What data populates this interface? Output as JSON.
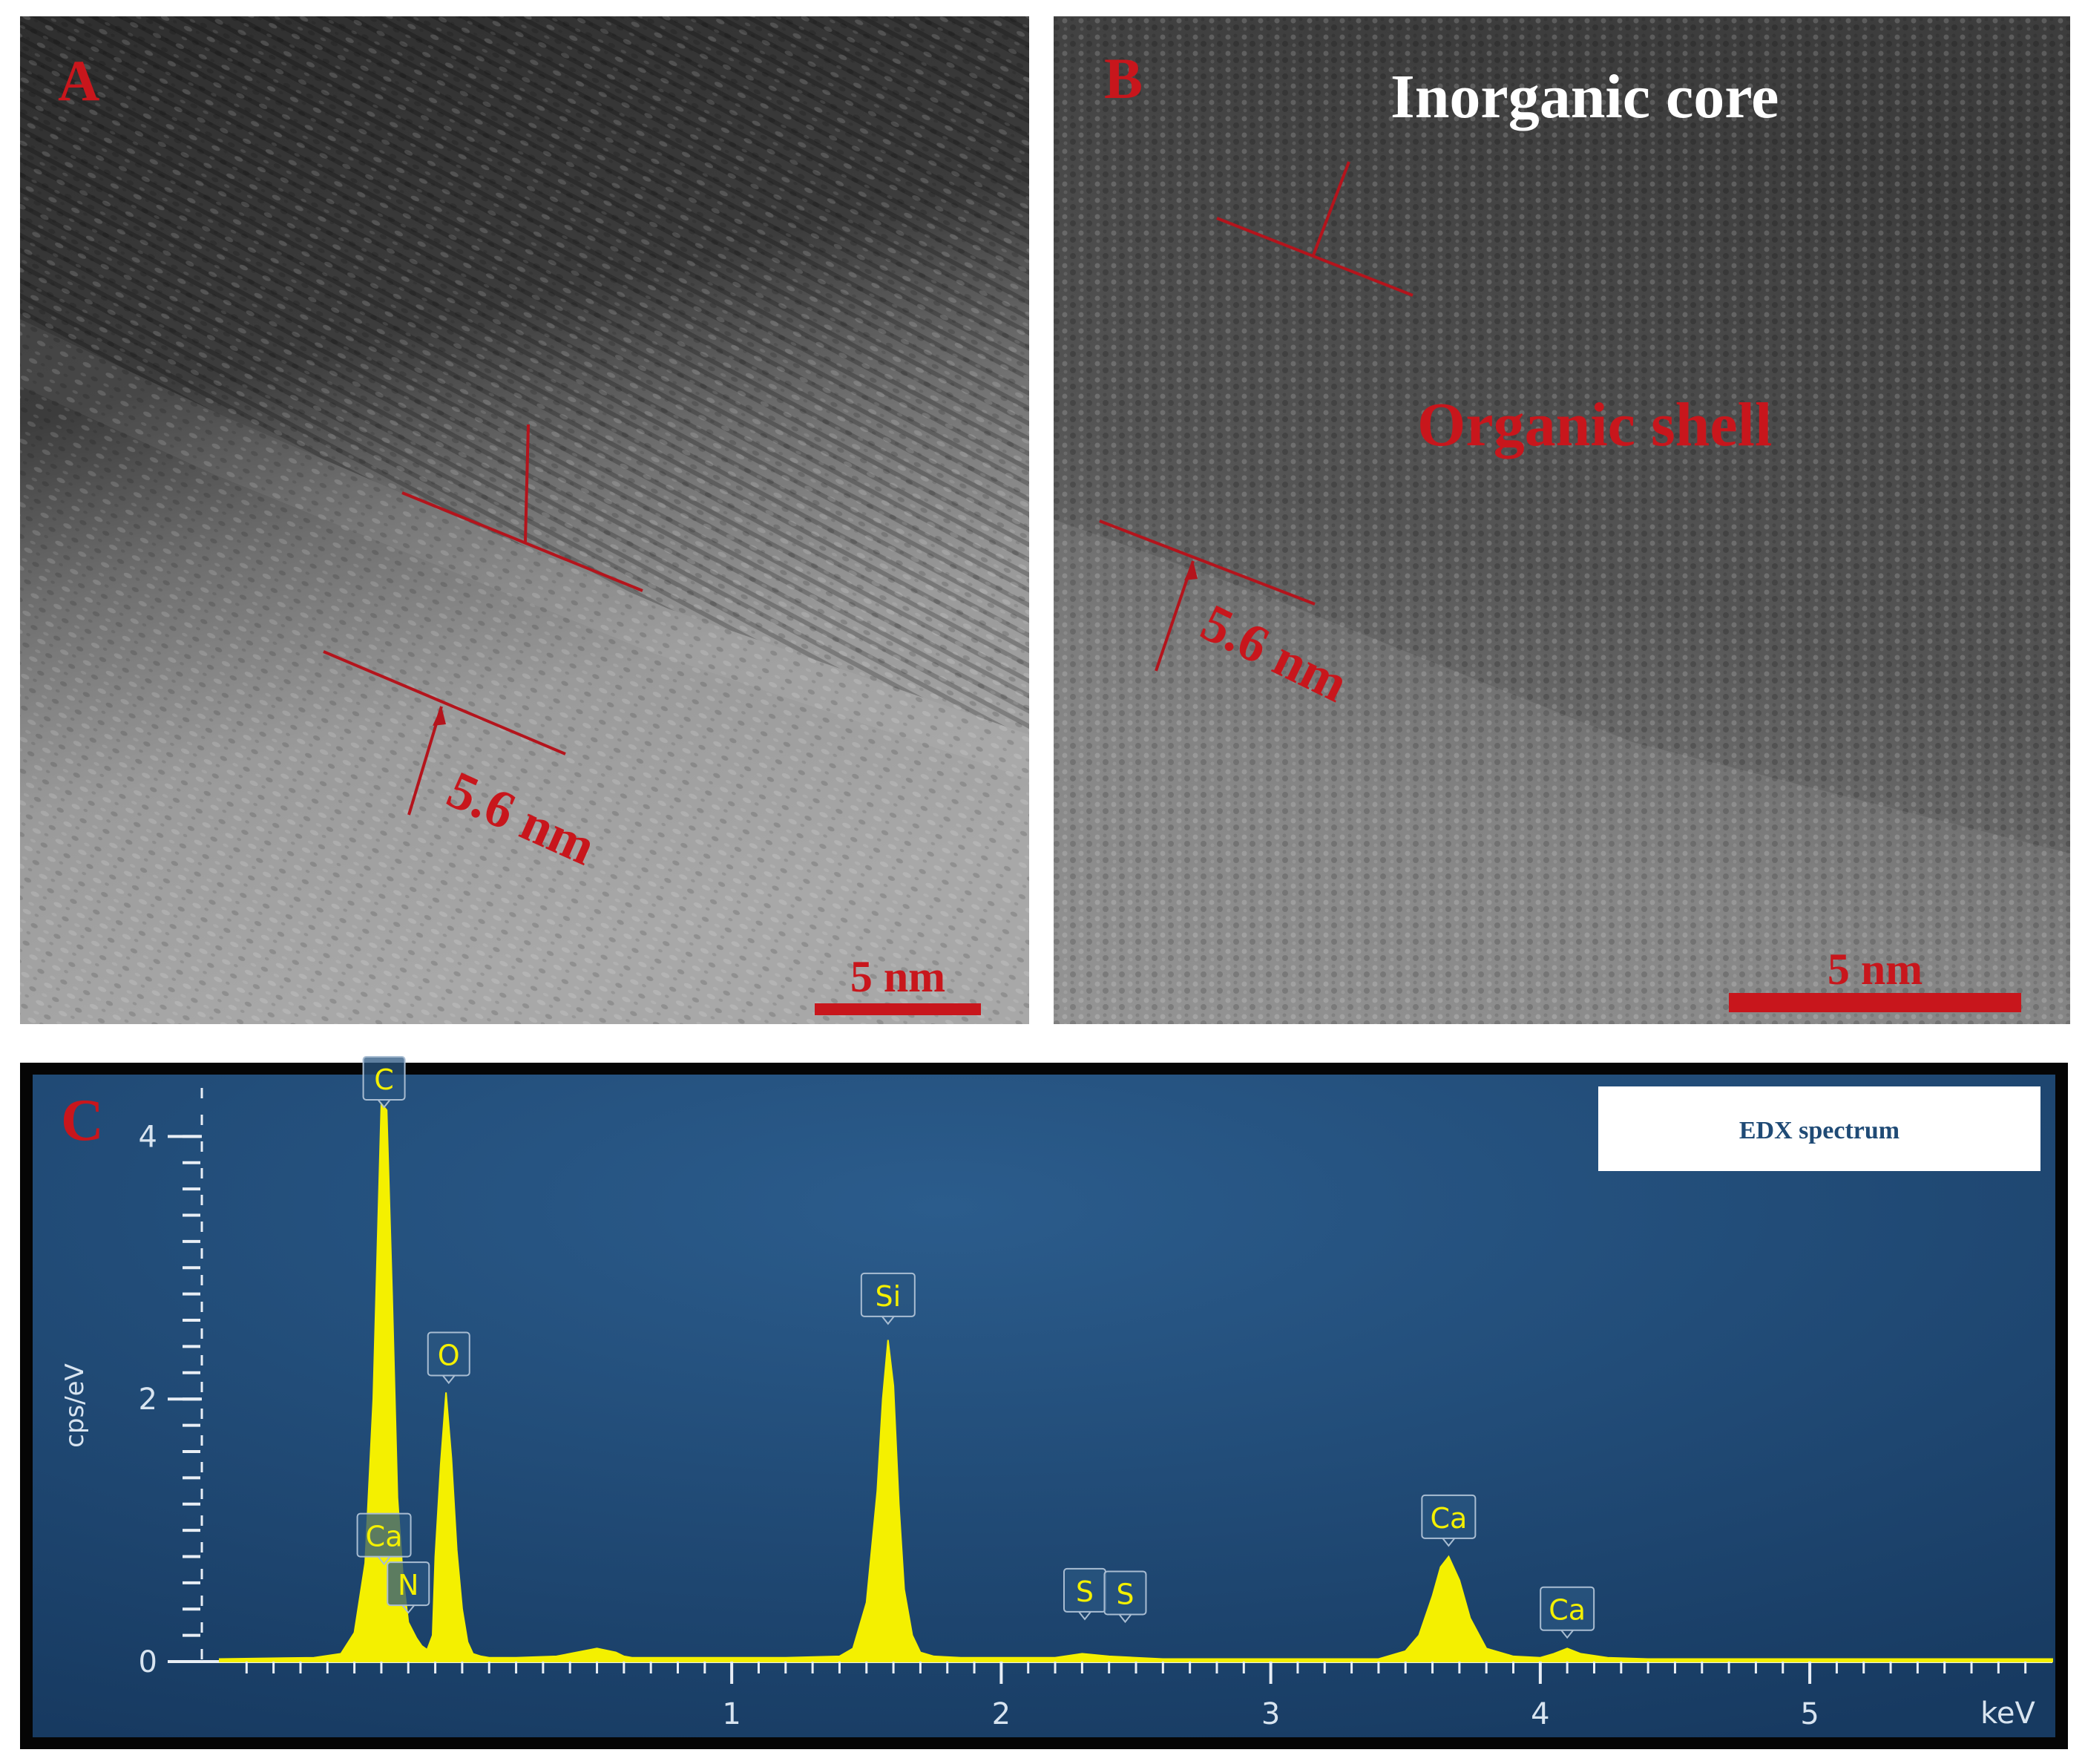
{
  "panel_a": {
    "label": "A",
    "measure_label": "5.6 nm",
    "scale_bar_label": "5 nm",
    "label_color": "#c8161c",
    "marker_color": "#b4141c"
  },
  "panel_b": {
    "label": "B",
    "core_label": "Inorganic core",
    "shell_label": "Organic shell",
    "measure_label": "5.6 nm",
    "scale_bar_label": "5 nm",
    "label_color": "#c8161c",
    "core_label_color": "#ffffff"
  },
  "panel_c": {
    "label": "C",
    "legend_title": "EDX spectrum",
    "background_color": "#1f4a75",
    "spectrum_color": "#f4f000"
  },
  "chart_data": {
    "type": "area",
    "title": "EDX spectrum",
    "xlabel": "keV",
    "ylabel": "cps/eV",
    "xlim": [
      -0.9,
      5.9
    ],
    "ylim": [
      0,
      4.2
    ],
    "xticks": [
      1,
      2,
      3,
      4,
      5
    ],
    "yticks": [
      0,
      2,
      4
    ],
    "grid": false,
    "series": [
      {
        "name": "EDX spectrum",
        "x": [
          -0.9,
          -0.55,
          -0.45,
          -0.4,
          -0.36,
          -0.33,
          -0.3,
          -0.28,
          -0.26,
          -0.24,
          -0.22,
          -0.2,
          -0.17,
          -0.15,
          -0.13,
          -0.11,
          -0.1,
          -0.08,
          -0.06,
          -0.04,
          -0.02,
          0.0,
          0.02,
          0.04,
          0.07,
          0.1,
          0.2,
          0.35,
          0.5,
          0.57,
          0.6,
          0.63,
          0.66,
          0.7,
          0.8,
          1.0,
          1.2,
          1.4,
          1.45,
          1.5,
          1.54,
          1.56,
          1.58,
          1.6,
          1.62,
          1.64,
          1.67,
          1.7,
          1.75,
          1.85,
          2.0,
          2.2,
          2.3,
          2.4,
          2.5,
          2.6,
          2.8,
          3.0,
          3.2,
          3.4,
          3.5,
          3.55,
          3.6,
          3.63,
          3.66,
          3.7,
          3.74,
          3.8,
          3.9,
          4.0,
          4.05,
          4.1,
          4.15,
          4.25,
          4.4,
          4.6,
          5.0,
          5.5,
          5.9
        ],
        "y": [
          0.02,
          0.03,
          0.06,
          0.22,
          0.75,
          2.0,
          4.25,
          4.2,
          2.8,
          1.25,
          0.65,
          0.3,
          0.18,
          0.12,
          0.09,
          0.2,
          0.8,
          1.5,
          2.05,
          1.55,
          0.85,
          0.4,
          0.15,
          0.06,
          0.04,
          0.03,
          0.03,
          0.04,
          0.1,
          0.07,
          0.04,
          0.03,
          0.03,
          0.03,
          0.03,
          0.03,
          0.03,
          0.04,
          0.1,
          0.45,
          1.3,
          2.0,
          2.45,
          2.1,
          1.2,
          0.55,
          0.2,
          0.07,
          0.04,
          0.03,
          0.03,
          0.03,
          0.06,
          0.04,
          0.03,
          0.02,
          0.02,
          0.02,
          0.02,
          0.02,
          0.08,
          0.2,
          0.5,
          0.72,
          0.8,
          0.62,
          0.33,
          0.1,
          0.04,
          0.03,
          0.06,
          0.1,
          0.06,
          0.03,
          0.02,
          0.02,
          0.02,
          0.02,
          0.02
        ]
      }
    ],
    "peak_labels": [
      {
        "text": "C",
        "x": -0.29,
        "y": 4.2
      },
      {
        "text": "Ca",
        "x": -0.29,
        "y": 0.72
      },
      {
        "text": "N",
        "x": -0.2,
        "y": 0.35
      },
      {
        "text": "O",
        "x": -0.05,
        "y": 2.1
      },
      {
        "text": "Si",
        "x": 1.58,
        "y": 2.55
      },
      {
        "text": "S",
        "x": 2.31,
        "y": 0.3
      },
      {
        "text": "S",
        "x": 2.46,
        "y": 0.28
      },
      {
        "text": "Ca",
        "x": 3.66,
        "y": 0.86
      },
      {
        "text": "Ca",
        "x": 4.1,
        "y": 0.16
      }
    ]
  }
}
